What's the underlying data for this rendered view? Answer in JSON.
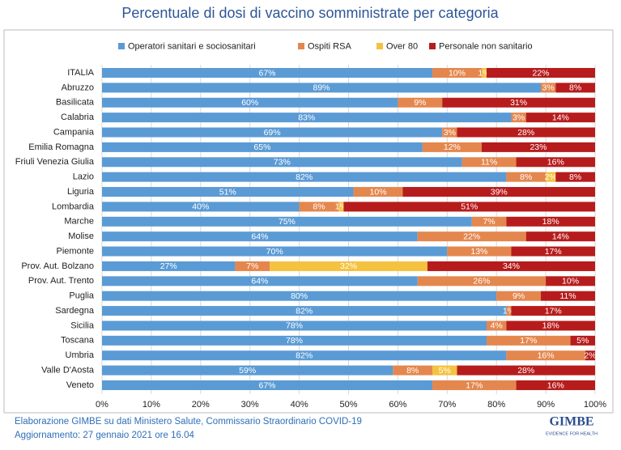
{
  "chart_data": {
    "type": "stacked-bar-horizontal",
    "title": "Percentuale di dosi di vaccino somministrate per categoria",
    "categories": [
      "ITALIA",
      "Abruzzo",
      "Basilicata",
      "Calabria",
      "Campania",
      "Emilia Romagna",
      "Friuli Venezia Giulia",
      "Lazio",
      "Liguria",
      "Lombardia",
      "Marche",
      "Molise",
      "Piemonte",
      "Prov. Aut. Bolzano",
      "Prov. Aut. Trento",
      "Puglia",
      "Sardegna",
      "Sicilia",
      "Toscana",
      "Umbria",
      "Valle D'Aosta",
      "Veneto"
    ],
    "series": [
      {
        "name": "Operatori sanitari e sociosanitari",
        "color": "#5b9bd5",
        "values": [
          67,
          89,
          60,
          83,
          69,
          65,
          73,
          82,
          51,
          40,
          75,
          64,
          70,
          27,
          64,
          80,
          82,
          78,
          78,
          82,
          59,
          67
        ],
        "value_labels": [
          "67%",
          "89%",
          "60%",
          "83%",
          "69%",
          "65%",
          "73%",
          "82%",
          "51%",
          "40%",
          "75%",
          "64%",
          "70%",
          "27%",
          "64%",
          "80%",
          "82%",
          "78%",
          "78%",
          "82%",
          "59%",
          "67%"
        ]
      },
      {
        "name": "Ospiti RSA",
        "color": "#e4874e",
        "values": [
          10,
          3,
          9,
          3,
          3,
          12,
          11,
          8,
          10,
          8,
          7,
          22,
          13,
          7,
          26,
          9,
          1,
          4,
          17,
          16,
          8,
          17
        ],
        "value_labels": [
          "10%",
          "3%",
          "9%",
          "3%",
          "3%",
          "12%",
          "11%",
          "8%",
          "10%",
          "8%",
          "7%",
          "22%",
          "13%",
          "7%",
          "26%",
          "9%",
          "1%",
          "4%",
          "17%",
          "16%",
          "8%",
          "17%"
        ]
      },
      {
        "name": "Over 80",
        "color": "#f5c240",
        "values": [
          1,
          0,
          0,
          0,
          0,
          0,
          0,
          2,
          0,
          1,
          0,
          0,
          0,
          32,
          0,
          0,
          0,
          0,
          0,
          0,
          5,
          0
        ],
        "value_labels": [
          "1%",
          null,
          null,
          null,
          null,
          null,
          null,
          "2%",
          null,
          "1%",
          null,
          null,
          null,
          "32%",
          null,
          null,
          null,
          null,
          null,
          null,
          "5%",
          null
        ]
      },
      {
        "name": "Personale non sanitario",
        "color": "#b71c1c",
        "values": [
          22,
          8,
          31,
          14,
          28,
          23,
          16,
          8,
          39,
          51,
          18,
          14,
          17,
          34,
          10,
          11,
          17,
          18,
          5,
          2,
          28,
          16
        ],
        "value_labels": [
          "22%",
          "8%",
          "31%",
          "14%",
          "28%",
          "23%",
          "16%",
          "8%",
          "39%",
          "51%",
          "18%",
          "14%",
          "17%",
          "34%",
          "10%",
          "11%",
          "17%",
          "18%",
          "5%",
          "2%",
          "28%",
          "16%"
        ]
      }
    ],
    "xlim": [
      0,
      100
    ],
    "xticks": [
      {
        "value": 0,
        "label": "0%"
      },
      {
        "value": 10,
        "label": "10%"
      },
      {
        "value": 20,
        "label": "20%"
      },
      {
        "value": 30,
        "label": "30%"
      },
      {
        "value": 40,
        "label": "40%"
      },
      {
        "value": 50,
        "label": "50%"
      },
      {
        "value": 60,
        "label": "60%"
      },
      {
        "value": 70,
        "label": "70%"
      },
      {
        "value": 80,
        "label": "80%"
      },
      {
        "value": 90,
        "label": "90%"
      },
      {
        "value": 100,
        "label": "100%"
      }
    ],
    "grid": true,
    "legend": "top",
    "source": "Elaborazione GIMBE su dati Ministero Salute, Commissario Straordinario COVID-19",
    "updated": "Aggiornamento: 27 gennaio 2021 ore 16.04",
    "logo": "GIMBE",
    "logo_tagline": "EVIDENCE FOR HEALTH"
  }
}
